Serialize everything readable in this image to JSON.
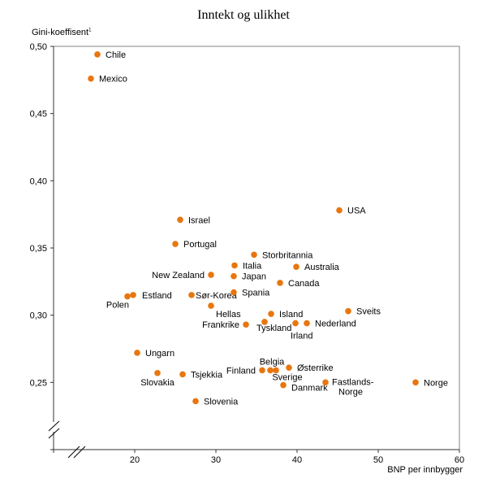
{
  "chart_data": {
    "type": "scatter",
    "title": "Inntekt og ulikhet",
    "ylabel": "Gini-koeffisent",
    "ylabel_footnote": "1",
    "xlabel": "BNP per innbygger",
    "xlim": [
      10,
      60
    ],
    "ylim": [
      0.2,
      0.5
    ],
    "axis_breaks": [
      "x",
      "y"
    ],
    "grid": false,
    "x_ticks": [
      {
        "v": 20,
        "label": "20"
      },
      {
        "v": 30,
        "label": "30"
      },
      {
        "v": 40,
        "label": "40"
      },
      {
        "v": 50,
        "label": "50"
      },
      {
        "v": 60,
        "label": "60"
      }
    ],
    "y_ticks": [
      {
        "v": 0.25,
        "label": "0,25"
      },
      {
        "v": 0.3,
        "label": "0,30"
      },
      {
        "v": 0.35,
        "label": "0,35"
      },
      {
        "v": 0.4,
        "label": "0,40"
      },
      {
        "v": 0.45,
        "label": "0,45"
      },
      {
        "v": 0.5,
        "label": "0,50"
      }
    ],
    "marker_color": "#E8760F",
    "points": [
      {
        "label": "Chile",
        "x": 15.4,
        "y": 0.494,
        "anchor": "right"
      },
      {
        "label": "Mexico",
        "x": 14.6,
        "y": 0.476,
        "anchor": "right"
      },
      {
        "label": "Israel",
        "x": 25.6,
        "y": 0.371,
        "anchor": "right"
      },
      {
        "label": "Portugal",
        "x": 25.0,
        "y": 0.353,
        "anchor": "right"
      },
      {
        "label": "USA",
        "x": 45.2,
        "y": 0.378,
        "anchor": "right"
      },
      {
        "label": "Storbritannia",
        "x": 34.7,
        "y": 0.345,
        "anchor": "right"
      },
      {
        "label": "Italia",
        "x": 32.3,
        "y": 0.337,
        "anchor": "right"
      },
      {
        "label": "Australia",
        "x": 39.9,
        "y": 0.336,
        "anchor": "right"
      },
      {
        "label": "New Zealand",
        "x": 29.4,
        "y": 0.33,
        "anchor": "left"
      },
      {
        "label": "Japan",
        "x": 32.2,
        "y": 0.329,
        "anchor": "right"
      },
      {
        "label": "Canada",
        "x": 37.9,
        "y": 0.324,
        "anchor": "right"
      },
      {
        "label": "Estland",
        "x": 19.8,
        "y": 0.315,
        "anchor": "right-far"
      },
      {
        "label": "Polen",
        "x": 19.1,
        "y": 0.314,
        "anchor": "below-left"
      },
      {
        "label": "Sør-Korea",
        "x": 27.0,
        "y": 0.315,
        "anchor": "right"
      },
      {
        "label": "Spania",
        "x": 32.2,
        "y": 0.317,
        "anchor": "right"
      },
      {
        "label": "Hellas",
        "x": 29.4,
        "y": 0.307,
        "anchor": "below-right"
      },
      {
        "label": "Island",
        "x": 36.8,
        "y": 0.301,
        "anchor": "right"
      },
      {
        "label": "Sveits",
        "x": 46.3,
        "y": 0.303,
        "anchor": "right"
      },
      {
        "label": "Frankrike",
        "x": 33.7,
        "y": 0.293,
        "anchor": "left"
      },
      {
        "label": "Tyskland",
        "x": 36.0,
        "y": 0.295,
        "anchor": "below-right"
      },
      {
        "label": "Irland",
        "x": 39.8,
        "y": 0.294,
        "anchor": "below"
      },
      {
        "label": "Nederland",
        "x": 41.2,
        "y": 0.294,
        "anchor": "right"
      },
      {
        "label": "Ungarn",
        "x": 20.3,
        "y": 0.272,
        "anchor": "right"
      },
      {
        "label": "Slovakia",
        "x": 22.8,
        "y": 0.257,
        "anchor": "below"
      },
      {
        "label": "Tsjekkia",
        "x": 25.9,
        "y": 0.256,
        "anchor": "right"
      },
      {
        "label": "Slovenia",
        "x": 27.5,
        "y": 0.236,
        "anchor": "right"
      },
      {
        "label": "Finland",
        "x": 35.7,
        "y": 0.259,
        "anchor": "left"
      },
      {
        "label": "Belgia",
        "x": 36.7,
        "y": 0.259,
        "anchor": "above"
      },
      {
        "label": "Sverige",
        "x": 37.4,
        "y": 0.259,
        "anchor": "below"
      },
      {
        "label": "Østerrike",
        "x": 39.0,
        "y": 0.261,
        "anchor": "right"
      },
      {
        "label": "Danmark",
        "x": 38.3,
        "y": 0.248,
        "anchor": "right"
      },
      {
        "label": "Fastlands-Norge",
        "x": 43.5,
        "y": 0.25,
        "anchor": "right-two-line"
      },
      {
        "label": "Norge",
        "x": 54.6,
        "y": 0.25,
        "anchor": "right"
      }
    ]
  }
}
